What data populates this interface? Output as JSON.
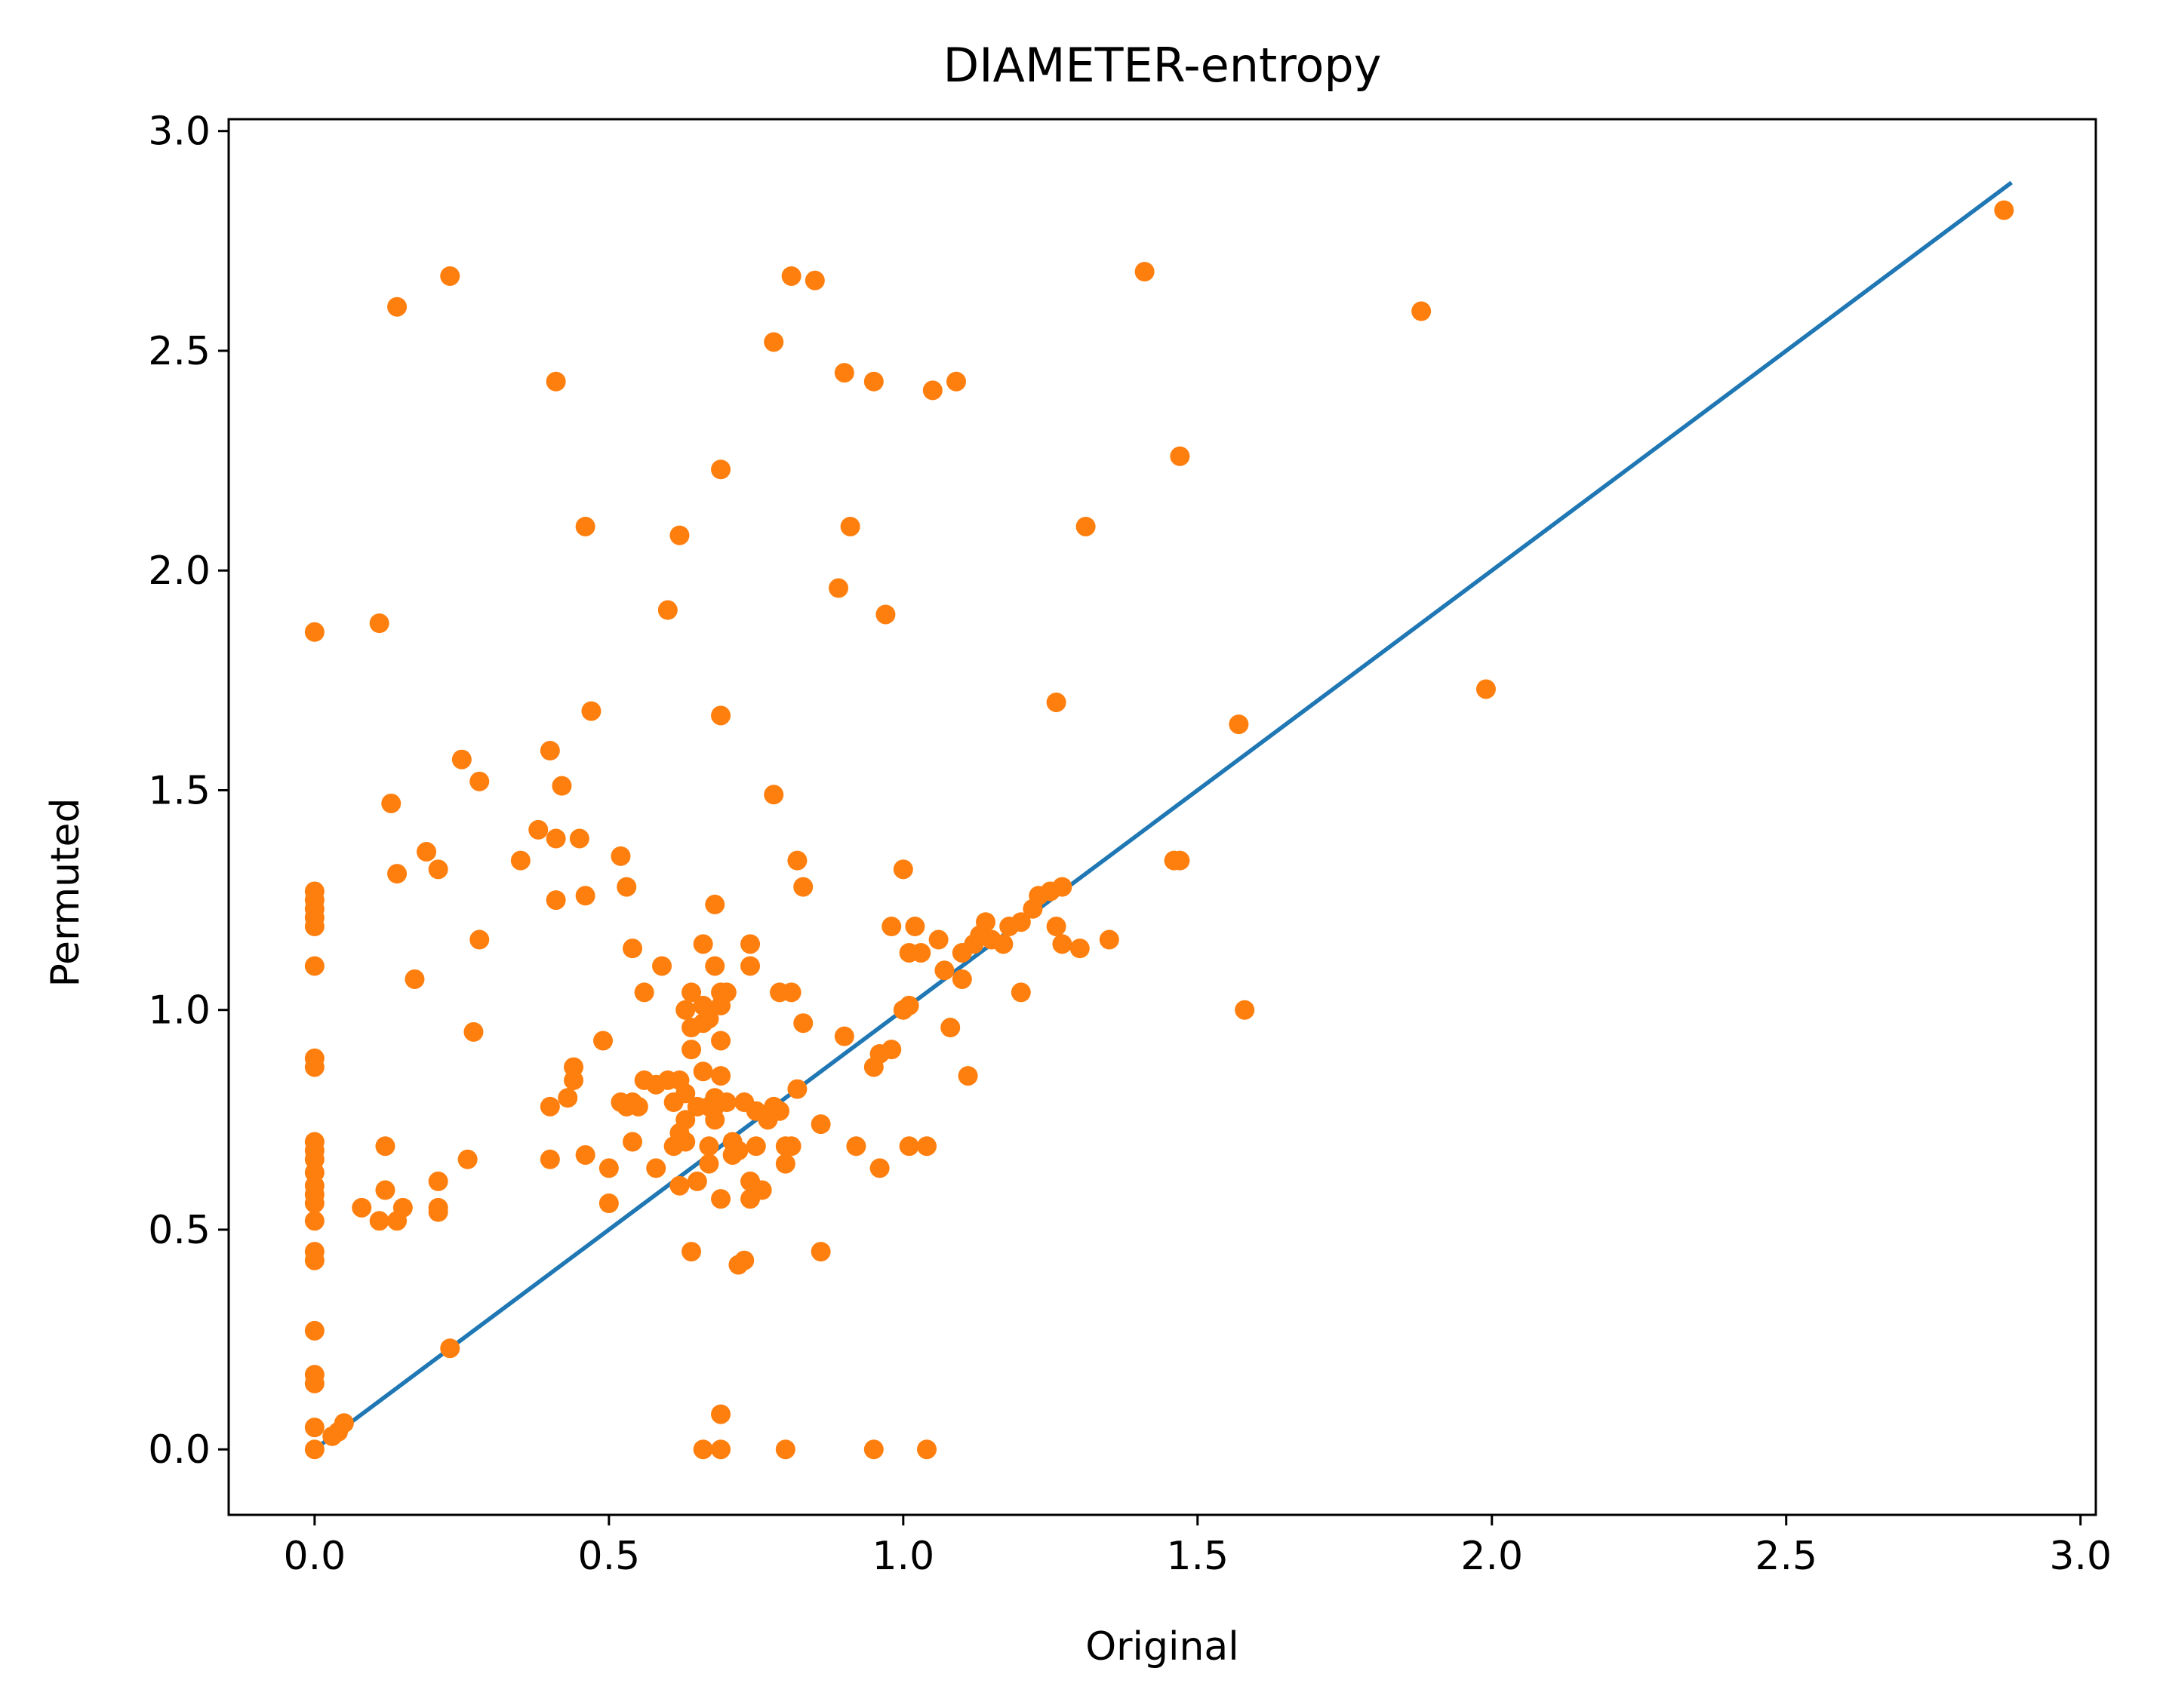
{
  "chart_data": {
    "type": "scatter",
    "title": "DIAMETER-entropy",
    "xlabel": "Original",
    "ylabel": "Permuted",
    "xlim": [
      -0.146,
      3.026
    ],
    "ylim": [
      -0.149,
      3.027
    ],
    "x_ticks": [
      0.0,
      0.5,
      1.0,
      1.5,
      2.0,
      2.5,
      3.0
    ],
    "x_tick_labels": [
      "0.0",
      "0.5",
      "1.0",
      "1.5",
      "2.0",
      "2.5",
      "3.0"
    ],
    "y_ticks": [
      0.0,
      0.5,
      1.0,
      1.5,
      2.0,
      2.5,
      3.0
    ],
    "y_tick_labels": [
      "0.0",
      "0.5",
      "1.0",
      "1.5",
      "2.0",
      "2.5",
      "3.0"
    ],
    "grid": false,
    "legend": "none",
    "colors": {
      "line": "#1f77b4",
      "points": "#ff7f0e"
    },
    "reference_line": {
      "x": [
        0.0,
        2.88
      ],
      "y": [
        0.0,
        2.88
      ]
    },
    "series": [
      {
        "points": [
          [
            0.0,
            1.86
          ],
          [
            0.0,
            1.27
          ],
          [
            0.0,
            1.25
          ],
          [
            0.0,
            1.23
          ],
          [
            0.0,
            1.21
          ],
          [
            0.0,
            1.19
          ],
          [
            0.0,
            1.1
          ],
          [
            0.0,
            0.89
          ],
          [
            0.0,
            0.87
          ],
          [
            0.0,
            0.7
          ],
          [
            0.0,
            0.68
          ],
          [
            0.0,
            0.66
          ],
          [
            0.0,
            0.63
          ],
          [
            0.0,
            0.6
          ],
          [
            0.0,
            0.58
          ],
          [
            0.0,
            0.56
          ],
          [
            0.0,
            0.52
          ],
          [
            0.0,
            0.45
          ],
          [
            0.0,
            0.43
          ],
          [
            0.0,
            0.27
          ],
          [
            0.0,
            0.17
          ],
          [
            0.0,
            0.15
          ],
          [
            0.0,
            0.05
          ],
          [
            0.0,
            0.0
          ],
          [
            0.03,
            0.03
          ],
          [
            0.04,
            0.04
          ],
          [
            0.05,
            0.06
          ],
          [
            0.08,
            0.55
          ],
          [
            0.11,
            0.52
          ],
          [
            0.11,
            1.88
          ],
          [
            0.12,
            0.69
          ],
          [
            0.12,
            0.59
          ],
          [
            0.13,
            1.47
          ],
          [
            0.14,
            1.31
          ],
          [
            0.14,
            2.6
          ],
          [
            0.14,
            0.52
          ],
          [
            0.15,
            0.55
          ],
          [
            0.17,
            1.07
          ],
          [
            0.19,
            1.36
          ],
          [
            0.21,
            1.32
          ],
          [
            0.21,
            0.61
          ],
          [
            0.21,
            0.54
          ],
          [
            0.21,
            0.55
          ],
          [
            0.23,
            0.23
          ],
          [
            0.23,
            2.67
          ],
          [
            0.25,
            1.57
          ],
          [
            0.26,
            0.66
          ],
          [
            0.27,
            0.95
          ],
          [
            0.28,
            1.52
          ],
          [
            0.28,
            1.16
          ],
          [
            0.35,
            1.34
          ],
          [
            0.38,
            1.41
          ],
          [
            0.4,
            1.59
          ],
          [
            0.4,
            0.78
          ],
          [
            0.4,
            0.66
          ],
          [
            0.41,
            2.43
          ],
          [
            0.41,
            1.39
          ],
          [
            0.41,
            1.25
          ],
          [
            0.42,
            1.51
          ],
          [
            0.43,
            0.8
          ],
          [
            0.44,
            0.84
          ],
          [
            0.44,
            0.87
          ],
          [
            0.45,
            1.39
          ],
          [
            0.46,
            2.1
          ],
          [
            0.46,
            1.26
          ],
          [
            0.46,
            0.67
          ],
          [
            0.47,
            1.68
          ],
          [
            0.49,
            0.93
          ],
          [
            0.5,
            0.64
          ],
          [
            0.5,
            0.56
          ],
          [
            0.52,
            1.35
          ],
          [
            0.52,
            0.79
          ],
          [
            0.53,
            1.28
          ],
          [
            0.53,
            0.78
          ],
          [
            0.54,
            1.14
          ],
          [
            0.54,
            0.79
          ],
          [
            0.54,
            0.7
          ],
          [
            0.55,
            0.78
          ],
          [
            0.56,
            0.84
          ],
          [
            0.56,
            1.04
          ],
          [
            0.58,
            0.83
          ],
          [
            0.58,
            0.64
          ],
          [
            0.59,
            1.1
          ],
          [
            0.6,
            1.91
          ],
          [
            0.6,
            0.84
          ],
          [
            0.61,
            0.79
          ],
          [
            0.61,
            0.69
          ],
          [
            0.62,
            2.08
          ],
          [
            0.62,
            0.84
          ],
          [
            0.62,
            0.72
          ],
          [
            0.62,
            0.6
          ],
          [
            0.63,
            1.0
          ],
          [
            0.63,
            0.81
          ],
          [
            0.63,
            0.75
          ],
          [
            0.63,
            0.7
          ],
          [
            0.64,
            1.04
          ],
          [
            0.64,
            0.96
          ],
          [
            0.64,
            0.91
          ],
          [
            0.64,
            0.45
          ],
          [
            0.65,
            0.78
          ],
          [
            0.65,
            0.61
          ],
          [
            0.66,
            1.15
          ],
          [
            0.66,
            1.01
          ],
          [
            0.66,
            0.97
          ],
          [
            0.66,
            0.86
          ],
          [
            0.66,
            0.0
          ],
          [
            0.67,
            0.98
          ],
          [
            0.67,
            0.78
          ],
          [
            0.67,
            0.69
          ],
          [
            0.67,
            0.65
          ],
          [
            0.68,
            1.24
          ],
          [
            0.68,
            1.1
          ],
          [
            0.68,
            0.8
          ],
          [
            0.68,
            0.78
          ],
          [
            0.68,
            0.75
          ],
          [
            0.69,
            2.23
          ],
          [
            0.69,
            1.67
          ],
          [
            0.69,
            1.04
          ],
          [
            0.69,
            1.01
          ],
          [
            0.69,
            0.93
          ],
          [
            0.69,
            0.85
          ],
          [
            0.69,
            0.57
          ],
          [
            0.69,
            0.08
          ],
          [
            0.69,
            0.0
          ],
          [
            0.7,
            1.04
          ],
          [
            0.7,
            0.79
          ],
          [
            0.71,
            0.7
          ],
          [
            0.71,
            0.67
          ],
          [
            0.72,
            0.68
          ],
          [
            0.72,
            0.42
          ],
          [
            0.73,
            0.79
          ],
          [
            0.73,
            0.43
          ],
          [
            0.74,
            1.15
          ],
          [
            0.74,
            1.1
          ],
          [
            0.74,
            0.61
          ],
          [
            0.74,
            0.57
          ],
          [
            0.75,
            0.77
          ],
          [
            0.75,
            0.69
          ],
          [
            0.76,
            0.59
          ],
          [
            0.77,
            0.76
          ],
          [
            0.77,
            0.75
          ],
          [
            0.78,
            2.52
          ],
          [
            0.78,
            0.78
          ],
          [
            0.78,
            1.49
          ],
          [
            0.79,
            1.04
          ],
          [
            0.79,
            0.77
          ],
          [
            0.8,
            0.69
          ],
          [
            0.8,
            0.65
          ],
          [
            0.8,
            0.0
          ],
          [
            0.81,
            2.67
          ],
          [
            0.81,
            1.04
          ],
          [
            0.81,
            0.69
          ],
          [
            0.82,
            1.34
          ],
          [
            0.82,
            0.82
          ],
          [
            0.83,
            1.28
          ],
          [
            0.83,
            0.97
          ],
          [
            0.85,
            2.66
          ],
          [
            0.86,
            0.45
          ],
          [
            0.86,
            0.74
          ],
          [
            0.89,
            1.96
          ],
          [
            0.9,
            2.45
          ],
          [
            0.9,
            0.94
          ],
          [
            0.91,
            2.1
          ],
          [
            0.92,
            0.69
          ],
          [
            0.95,
            2.43
          ],
          [
            0.95,
            0.87
          ],
          [
            0.95,
            0.0
          ],
          [
            0.96,
            0.64
          ],
          [
            0.96,
            0.9
          ],
          [
            0.97,
            1.9
          ],
          [
            0.98,
            1.19
          ],
          [
            0.98,
            0.91
          ],
          [
            1.0,
            1.32
          ],
          [
            1.0,
            1.0
          ],
          [
            1.01,
            1.01
          ],
          [
            1.01,
            0.69
          ],
          [
            1.01,
            1.13
          ],
          [
            1.02,
            1.19
          ],
          [
            1.03,
            1.13
          ],
          [
            1.04,
            0.69
          ],
          [
            1.04,
            0.0
          ],
          [
            1.05,
            2.41
          ],
          [
            1.06,
            1.16
          ],
          [
            1.07,
            1.09
          ],
          [
            1.08,
            0.96
          ],
          [
            1.09,
            2.43
          ],
          [
            1.1,
            1.13
          ],
          [
            1.1,
            1.07
          ],
          [
            1.11,
            0.85
          ],
          [
            1.12,
            1.15
          ],
          [
            1.13,
            1.17
          ],
          [
            1.14,
            1.2
          ],
          [
            1.15,
            1.16
          ],
          [
            1.17,
            1.15
          ],
          [
            1.18,
            1.19
          ],
          [
            1.2,
            1.04
          ],
          [
            1.2,
            1.2
          ],
          [
            1.22,
            1.23
          ],
          [
            1.23,
            1.26
          ],
          [
            1.25,
            1.27
          ],
          [
            1.26,
            1.19
          ],
          [
            1.26,
            1.7
          ],
          [
            1.27,
            1.28
          ],
          [
            1.27,
            1.15
          ],
          [
            1.3,
            1.14
          ],
          [
            1.31,
            2.1
          ],
          [
            1.35,
            1.16
          ],
          [
            1.41,
            2.68
          ],
          [
            1.46,
            1.34
          ],
          [
            1.47,
            1.34
          ],
          [
            1.47,
            2.26
          ],
          [
            1.57,
            1.65
          ],
          [
            1.58,
            1.0
          ],
          [
            1.88,
            2.59
          ],
          [
            1.99,
            1.73
          ],
          [
            2.87,
            2.82
          ]
        ]
      }
    ]
  }
}
